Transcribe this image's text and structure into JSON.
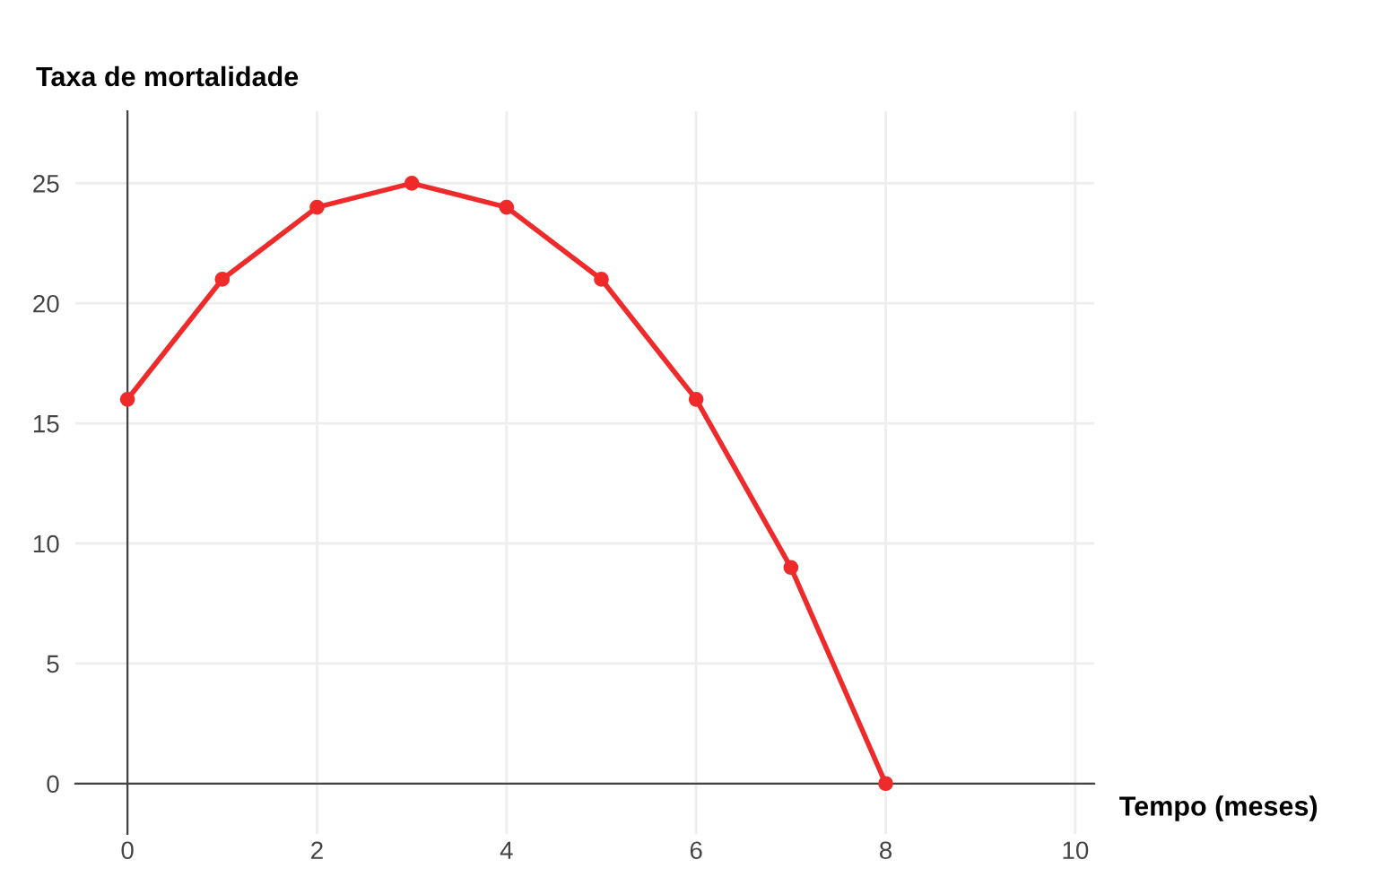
{
  "chart_data": {
    "type": "line",
    "ylabel": "Taxa de mortalidade",
    "xlabel": "Tempo (meses)",
    "x": [
      0,
      1,
      2,
      3,
      4,
      5,
      6,
      7,
      8
    ],
    "series": [
      {
        "color": "#ee2a2a",
        "values": [
          16,
          21,
          24,
          25,
          24,
          21,
          16,
          9,
          0
        ]
      }
    ],
    "xlim": [
      -0.55,
      10.2
    ],
    "ylim": [
      -2.1,
      28
    ],
    "xticks": [
      0,
      2,
      4,
      6,
      8,
      10
    ],
    "yticks": [
      0,
      5,
      10,
      15,
      20,
      25
    ],
    "grid": true,
    "marker": "circle",
    "line_style": "solid"
  }
}
